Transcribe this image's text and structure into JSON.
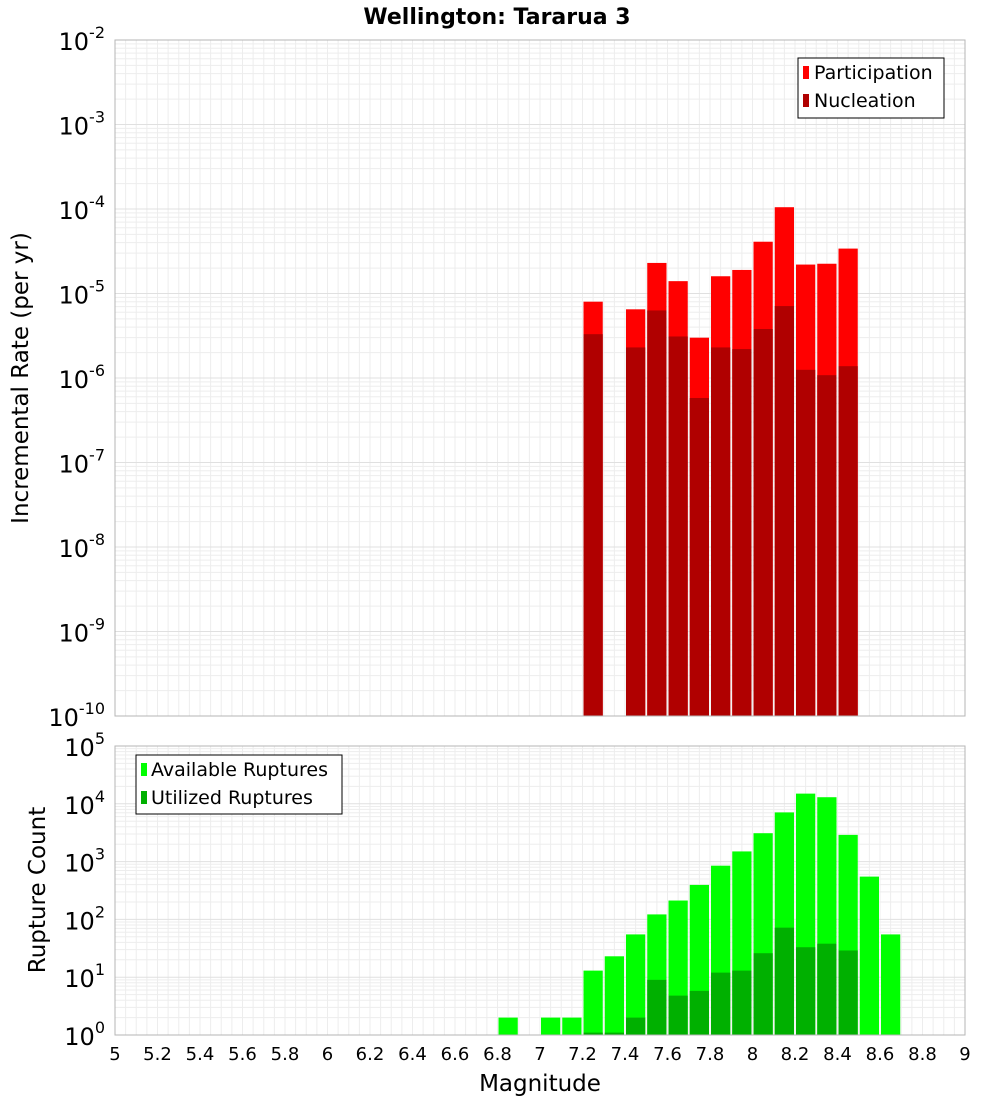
{
  "chart_data": [
    {
      "type": "bar",
      "title": "Wellington: Tararua 3",
      "ylabel": "Incremental Rate (per yr)",
      "yscale": "log",
      "ylim": [
        1e-10,
        0.01
      ],
      "xlim": [
        5,
        9
      ],
      "grid": true,
      "legend_position": "top-right",
      "x": [
        7.25,
        7.35,
        7.45,
        7.55,
        7.65,
        7.75,
        7.85,
        7.95,
        8.05,
        8.15,
        8.25,
        8.35,
        8.45
      ],
      "series": [
        {
          "name": "Participation",
          "color": "#ff0000",
          "values": [
            8e-06,
            null,
            6.5e-06,
            2.3e-05,
            1.4e-05,
            3e-06,
            1.6e-05,
            1.9e-05,
            4.1e-05,
            0.000105,
            2.2e-05,
            2.25e-05,
            3.4e-05
          ]
        },
        {
          "name": "Nucleation",
          "color": "#b00000",
          "values": [
            3.3e-06,
            null,
            2.3e-06,
            6.3e-06,
            3.1e-06,
            5.8e-07,
            2.3e-06,
            2.2e-06,
            3.8e-06,
            7.1e-06,
            1.25e-06,
            1.08e-06,
            1.38e-06
          ]
        }
      ]
    },
    {
      "type": "bar",
      "ylabel": "Rupture Count",
      "xlabel": "Magnitude",
      "yscale": "log",
      "ylim": [
        1,
        100000
      ],
      "xlim": [
        5,
        9
      ],
      "grid": true,
      "legend_position": "top-left",
      "x_ticks": [
        "5",
        "5.2",
        "5.4",
        "5.6",
        "5.8",
        "6",
        "6.2",
        "6.4",
        "6.6",
        "6.8",
        "7",
        "7.2",
        "7.4",
        "7.6",
        "7.8",
        "8",
        "8.2",
        "8.4",
        "8.6",
        "8.8",
        "9"
      ],
      "x": [
        6.85,
        7.05,
        7.15,
        7.25,
        7.35,
        7.45,
        7.55,
        7.65,
        7.75,
        7.85,
        7.95,
        8.05,
        8.15,
        8.25,
        8.35,
        8.45,
        8.55,
        8.65
      ],
      "series": [
        {
          "name": "Available Ruptures",
          "color": "#00ff00",
          "values": [
            2,
            2,
            2,
            13,
            23,
            55,
            122,
            212,
            395,
            850,
            1500,
            3100,
            7100,
            15000,
            13000,
            2900,
            550,
            55
          ]
        },
        {
          "name": "Utilized Ruptures",
          "color": "#00b000",
          "values": [
            null,
            null,
            null,
            1.1,
            1.1,
            2,
            9,
            4.8,
            5.8,
            12,
            13,
            26,
            72,
            33,
            38,
            29,
            null,
            null
          ]
        }
      ]
    }
  ]
}
